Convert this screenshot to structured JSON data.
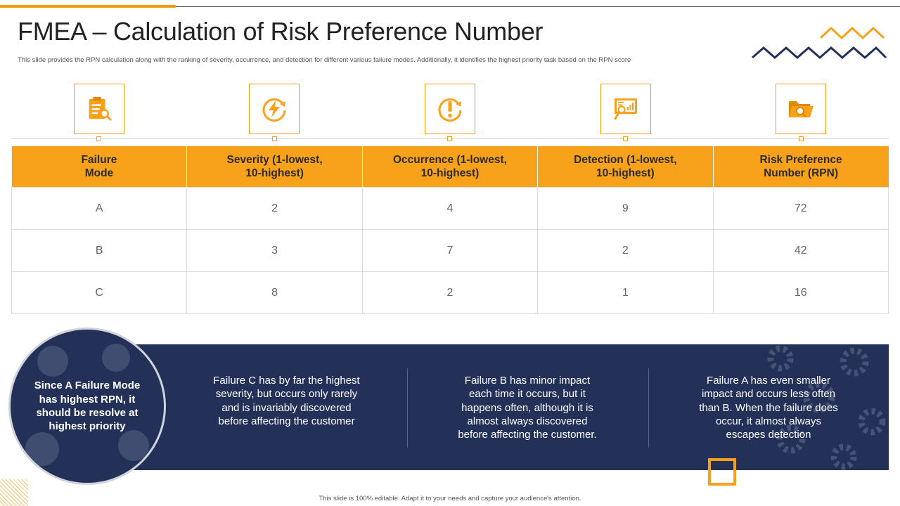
{
  "slide": {
    "title": "FMEA – Calculation of Risk Preference Number",
    "subtitle": "This slide provides the RPN  calculation along with the ranking of severity, occurrence, and detection for different various failure modes. Additionally, it identifies the highest priority task based on the RPN  score",
    "footer": "This slide is 100% editable. Adapt it to your needs and capture your audience's attention."
  },
  "colors": {
    "accent": "#f8a11b",
    "navy": "#233159"
  },
  "icons": [
    "clipboard-search-icon",
    "lightning-refresh-icon",
    "exclamation-refresh-icon",
    "presentation-board-icon",
    "folder-search-icon"
  ],
  "table": {
    "headers": [
      [
        "Failure",
        "Mode"
      ],
      [
        "Severity (1-lowest,",
        "10-highest)"
      ],
      [
        "Occurrence (1-lowest,",
        "10-highest)"
      ],
      [
        "Detection (1-lowest,",
        "10-highest)"
      ],
      [
        "Risk Preference",
        "Number (RPN)"
      ]
    ],
    "rows": [
      [
        "A",
        "2",
        "4",
        "9",
        "72"
      ],
      [
        "B",
        "3",
        "7",
        "2",
        "42"
      ],
      [
        "C",
        "8",
        "2",
        "1",
        "16"
      ]
    ]
  },
  "circle_lines": [
    "Since A Failure Mode",
    "has highest RPN, it",
    "should be resolve at",
    "highest priority"
  ],
  "columns": [
    [
      "Failure C has by far the highest",
      "severity, but occurs only rarely",
      "and is invariably discovered",
      "before affecting the customer"
    ],
    [
      "Failure B has minor impact",
      "each time it occurs, but it",
      "happens often, although it is",
      "almost always discovered",
      "before affecting the customer."
    ],
    [
      "Failure A has even smaller",
      "impact and occurs less often",
      "than B. When the failure does",
      "occur, it almost always",
      "escapes detection"
    ]
  ]
}
